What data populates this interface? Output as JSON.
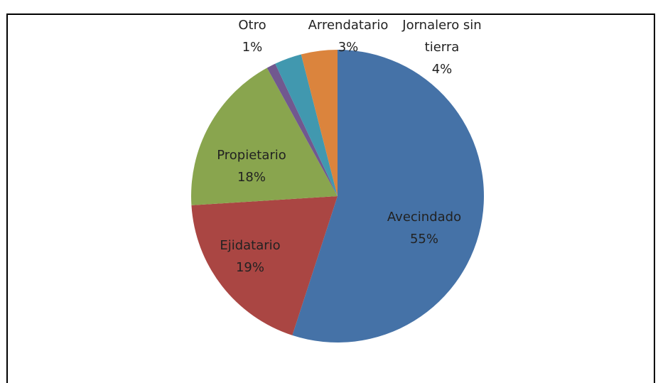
{
  "chart_data": {
    "type": "pie",
    "categories": [
      "Avecindado",
      "Ejidatario",
      "Propietario",
      "Otro",
      "Arrendatario",
      "Jornalero sin tierra"
    ],
    "values": [
      55,
      19,
      18,
      1,
      3,
      4
    ],
    "value_labels": [
      "55%",
      "19%",
      "18%",
      "1%",
      "3%",
      "4%"
    ],
    "colors": [
      "#4572a7",
      "#aa4643",
      "#89a54e",
      "#71588f",
      "#4198af",
      "#db843d"
    ]
  }
}
